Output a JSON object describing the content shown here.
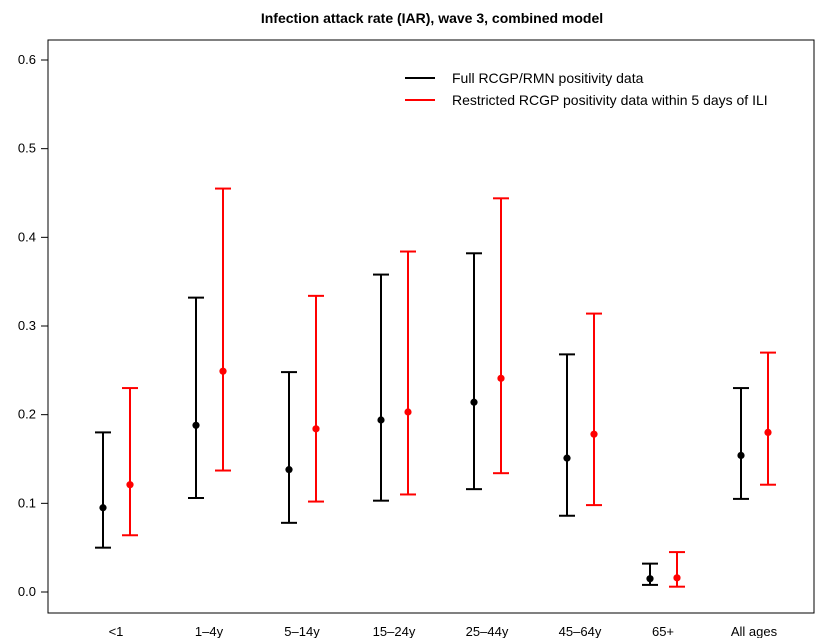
{
  "chart_data": {
    "type": "errorbar",
    "title": "Infection attack rate (IAR), wave 3, combined model",
    "xlabel": "",
    "ylabel": "",
    "ylim": [
      0.0,
      0.6
    ],
    "yticks": [
      "0.0",
      "0.1",
      "0.2",
      "0.3",
      "0.4",
      "0.5",
      "0.6"
    ],
    "categories": [
      "<1",
      "1–4y",
      "5–14y",
      "15–24y",
      "25–44y",
      "45–64y",
      "65+",
      "All ages"
    ],
    "grid": false,
    "legend_position": "top-right",
    "series": [
      {
        "name": "Full RCGP/RMN positivity data",
        "color": "#000000",
        "values": [
          0.095,
          0.188,
          0.138,
          0.194,
          0.214,
          0.151,
          0.015,
          0.154
        ],
        "lower": [
          0.05,
          0.106,
          0.078,
          0.103,
          0.116,
          0.086,
          0.008,
          0.105
        ],
        "upper": [
          0.18,
          0.332,
          0.248,
          0.358,
          0.382,
          0.268,
          0.032,
          0.23
        ]
      },
      {
        "name": "Restricted RCGP positivity data within 5 days of ILI",
        "color": "#ff0000",
        "values": [
          0.121,
          0.249,
          0.184,
          0.203,
          0.241,
          0.178,
          0.016,
          0.18
        ],
        "lower": [
          0.064,
          0.137,
          0.102,
          0.11,
          0.134,
          0.098,
          0.006,
          0.121
        ],
        "upper": [
          0.23,
          0.455,
          0.334,
          0.384,
          0.444,
          0.314,
          0.045,
          0.27
        ]
      }
    ]
  }
}
